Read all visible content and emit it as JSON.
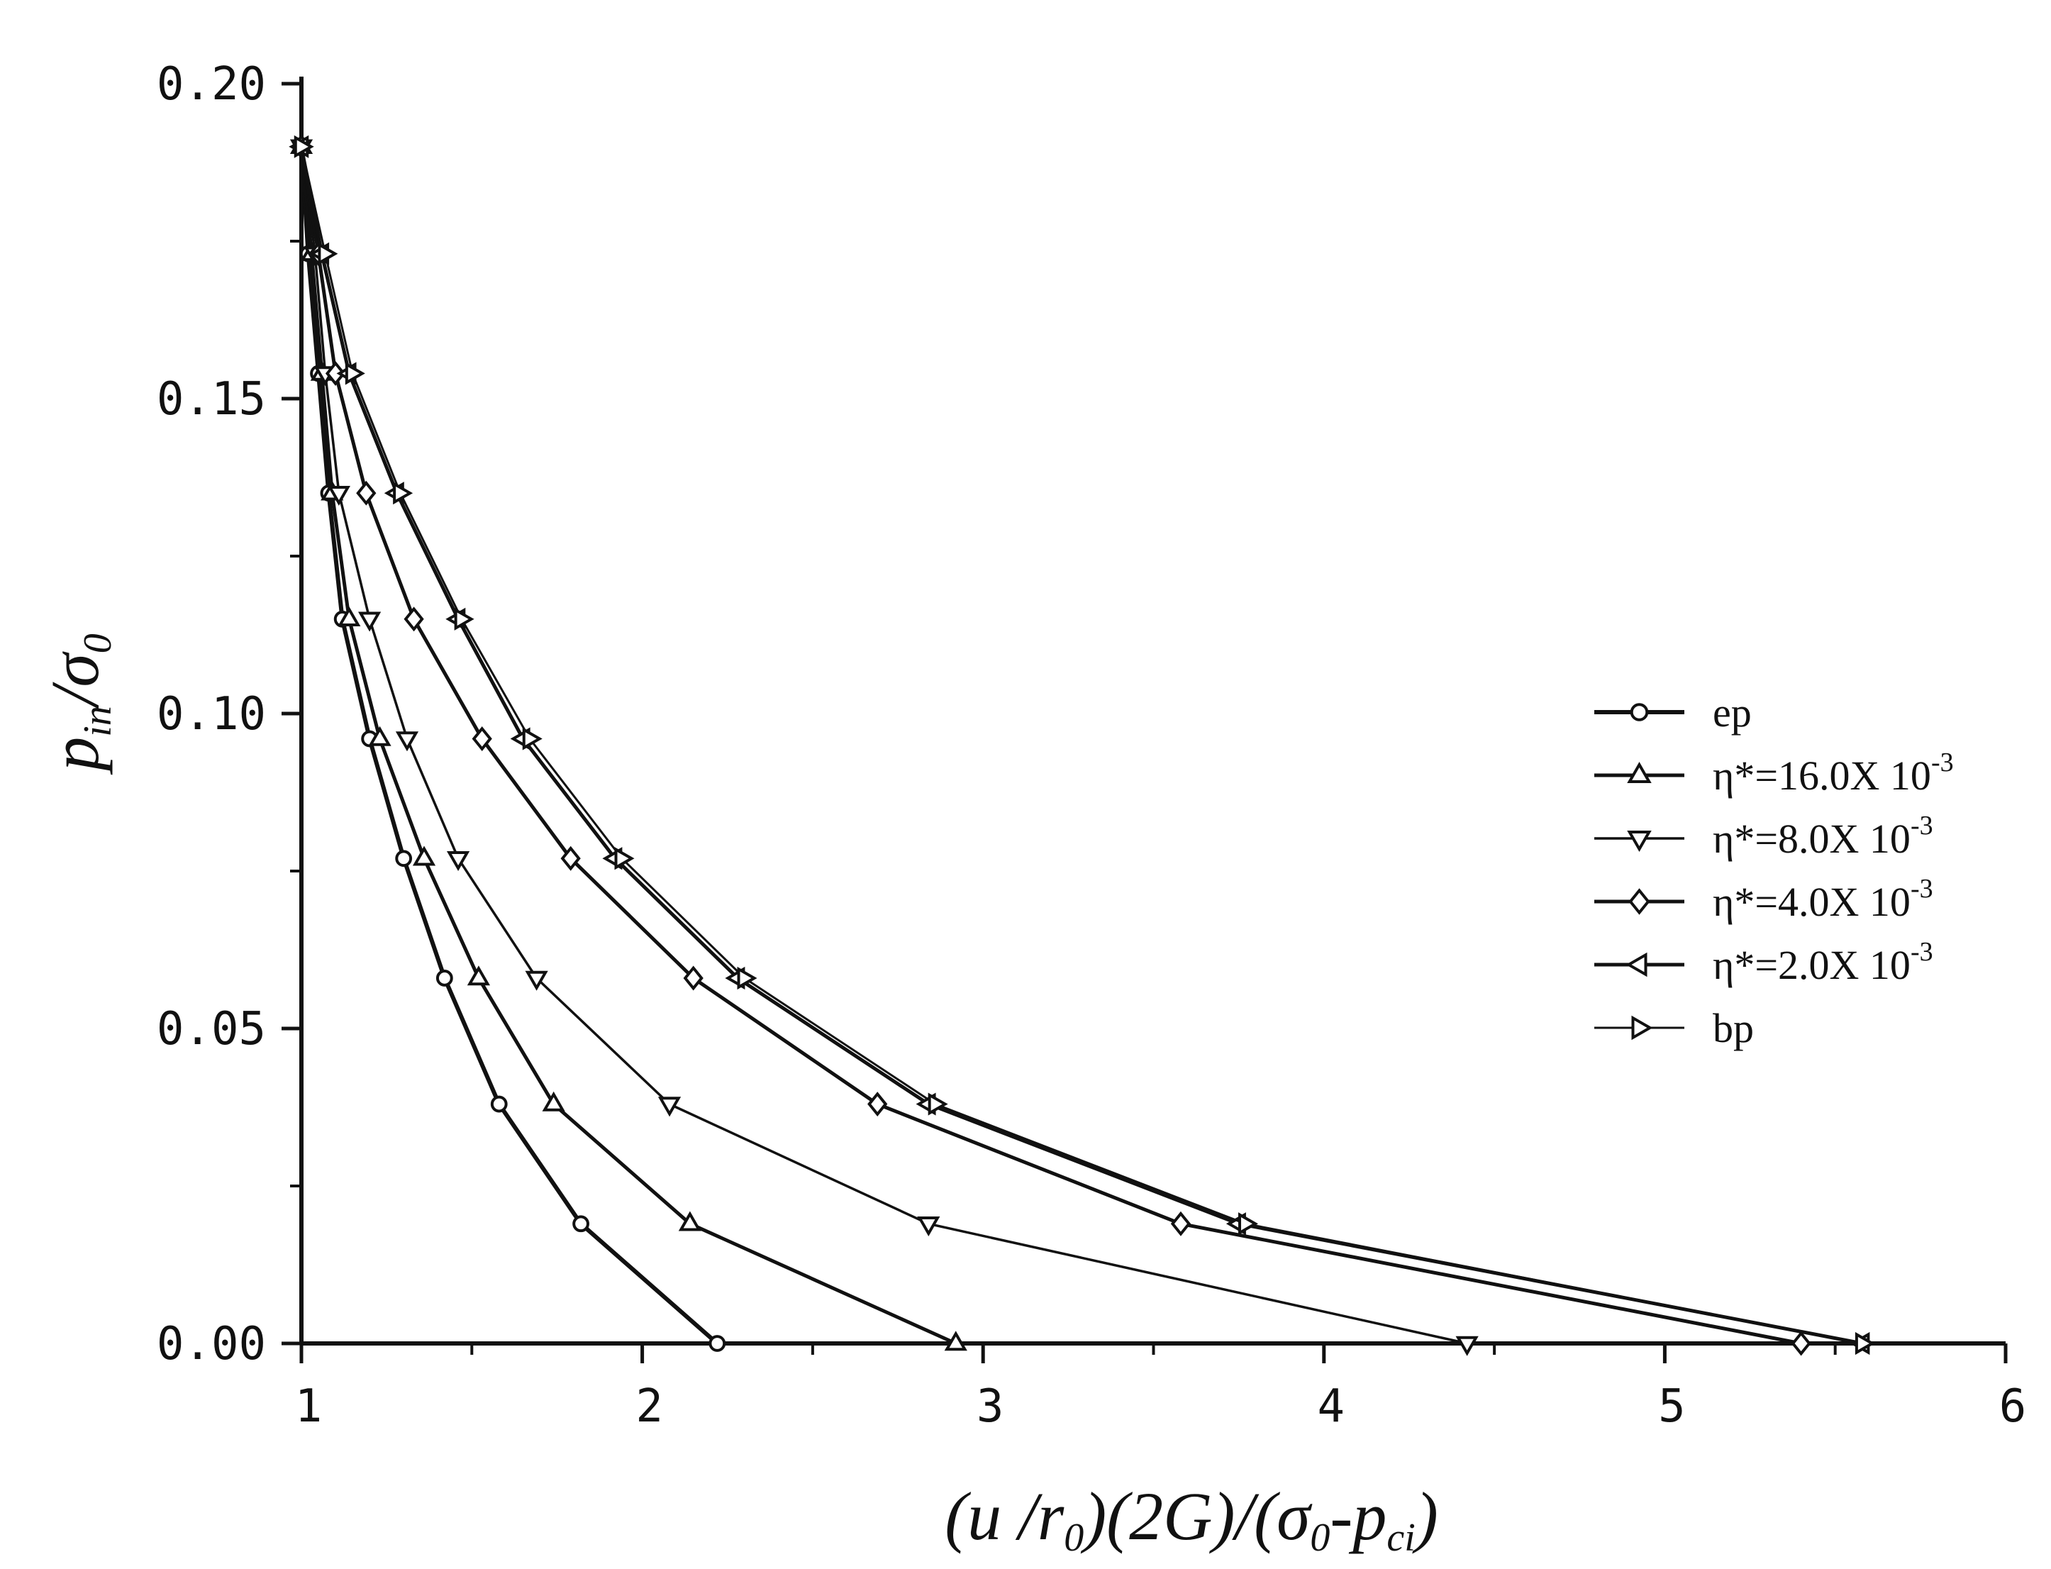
{
  "chart_data": {
    "type": "line",
    "title": "",
    "xlabel": "(u /r₀)(2G)/(σ₀-pᶜᵢ)",
    "ylabel": "pᵢₙ/σ₀",
    "xlabel_parts": {
      "p1": "(",
      "u": "u",
      "p2": " /",
      "r": "r",
      "r_sub": "0",
      "p3": ")(2G)/(",
      "sigma": "σ",
      "sigma_sub": "0",
      "p4": "-",
      "p": "p",
      "p_sub": "ci",
      "p5": ")"
    },
    "ylabel_parts": {
      "p": "p",
      "p_sub": "in",
      "slash": "/",
      "sigma": "σ",
      "sigma_sub": "0"
    },
    "xlim": [
      1,
      6
    ],
    "ylim": [
      0,
      0.2
    ],
    "x_ticks": [
      "1",
      "2",
      "3",
      "4",
      "5",
      "6"
    ],
    "y_ticks": [
      "0.00",
      "0.05",
      "0.10",
      "0.15",
      "0.20"
    ],
    "grid": false,
    "legend_position": "right",
    "series": [
      {
        "name": "ep",
        "marker": "circle",
        "x": [
          1.0,
          1.02,
          1.05,
          1.08,
          1.12,
          1.2,
          1.3,
          1.42,
          1.58,
          1.82,
          2.22
        ],
        "y": [
          0.19,
          0.173,
          0.154,
          0.135,
          0.115,
          0.096,
          0.077,
          0.058,
          0.038,
          0.019,
          0.0
        ]
      },
      {
        "name": "η*=16.0X 10",
        "sup": "-3",
        "marker": "triangle-up",
        "x": [
          1.0,
          1.03,
          1.06,
          1.09,
          1.14,
          1.23,
          1.36,
          1.52,
          1.74,
          2.14,
          2.92
        ],
        "y": [
          0.19,
          0.173,
          0.154,
          0.135,
          0.115,
          0.096,
          0.077,
          0.058,
          0.038,
          0.019,
          0.0
        ]
      },
      {
        "name": "η*=8.0X 10",
        "sup": "-3",
        "marker": "triangle-down",
        "x": [
          1.0,
          1.04,
          1.07,
          1.11,
          1.2,
          1.31,
          1.46,
          1.69,
          2.08,
          2.84,
          4.42
        ],
        "y": [
          0.19,
          0.173,
          0.154,
          0.135,
          0.115,
          0.096,
          0.077,
          0.058,
          0.038,
          0.019,
          0.0
        ]
      },
      {
        "name": "η*=4.0X 10",
        "sup": "-3",
        "marker": "diamond",
        "x": [
          1.0,
          1.05,
          1.1,
          1.19,
          1.33,
          1.53,
          1.79,
          2.15,
          2.69,
          3.58,
          5.4
        ],
        "y": [
          0.19,
          0.173,
          0.154,
          0.135,
          0.115,
          0.096,
          0.077,
          0.058,
          0.038,
          0.019,
          0.0
        ]
      },
      {
        "name": "η*=2.0X 10",
        "sup": "-3",
        "marker": "triangle-left",
        "x": [
          1.0,
          1.06,
          1.14,
          1.28,
          1.46,
          1.65,
          1.92,
          2.28,
          2.84,
          3.75,
          5.58
        ],
        "y": [
          0.19,
          0.173,
          0.154,
          0.135,
          0.115,
          0.096,
          0.077,
          0.058,
          0.038,
          0.019,
          0.0
        ]
      },
      {
        "name": "bp",
        "marker": "triangle-right",
        "x": [
          1.0,
          1.07,
          1.15,
          1.29,
          1.47,
          1.67,
          1.94,
          2.3,
          2.86,
          3.77,
          5.58
        ],
        "y": [
          0.19,
          0.173,
          0.154,
          0.135,
          0.115,
          0.096,
          0.077,
          0.058,
          0.038,
          0.019,
          0.0
        ]
      }
    ]
  }
}
